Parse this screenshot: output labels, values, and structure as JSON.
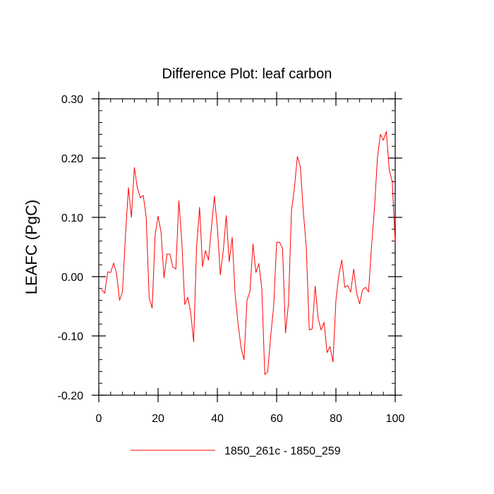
{
  "chart_data": {
    "type": "line",
    "title": "Difference Plot: leaf carbon",
    "xlabel": "",
    "ylabel": "LEAFC  (PgC)",
    "xlim": [
      0,
      100
    ],
    "ylim": [
      -0.2,
      0.3
    ],
    "x_ticks": [
      0,
      20,
      40,
      60,
      80,
      100
    ],
    "y_ticks": [
      -0.2,
      -0.1,
      0.0,
      0.1,
      0.2,
      0.3
    ],
    "x_tick_labels": [
      "0",
      "20",
      "40",
      "60",
      "80",
      "100"
    ],
    "y_tick_labels": [
      "-0.20",
      "-0.10",
      "0.00",
      "0.10",
      "0.20",
      "0.30"
    ],
    "grid": false,
    "legend_position": "bottom-center",
    "series": [
      {
        "name": "1850_261c - 1850_259",
        "color": "#ff0000",
        "x": [
          1,
          2,
          3,
          4,
          5,
          6,
          7,
          8,
          9,
          10,
          11,
          12,
          13,
          14,
          15,
          16,
          17,
          18,
          19,
          20,
          21,
          22,
          23,
          24,
          25,
          26,
          27,
          28,
          29,
          30,
          31,
          32,
          33,
          34,
          35,
          36,
          37,
          38,
          39,
          40,
          41,
          42,
          43,
          44,
          45,
          46,
          47,
          48,
          49,
          50,
          51,
          52,
          53,
          54,
          55,
          56,
          57,
          58,
          59,
          60,
          61,
          62,
          63,
          64,
          65,
          66,
          67,
          68,
          69,
          70,
          71,
          72,
          73,
          74,
          75,
          76,
          77,
          78,
          79,
          80,
          81,
          82,
          83,
          84,
          85,
          86,
          87,
          88,
          89,
          90,
          91,
          92,
          93,
          94,
          95,
          96,
          97,
          98,
          99,
          100
        ],
        "values": [
          -0.022,
          -0.028,
          0.008,
          0.007,
          0.023,
          0.005,
          -0.04,
          -0.025,
          0.07,
          0.15,
          0.1,
          0.184,
          0.15,
          0.133,
          0.137,
          0.1,
          -0.036,
          -0.053,
          0.07,
          0.102,
          0.075,
          -0.002,
          0.038,
          0.038,
          0.016,
          0.013,
          0.128,
          0.06,
          -0.047,
          -0.035,
          -0.06,
          -0.11,
          0.05,
          0.117,
          0.017,
          0.044,
          0.028,
          0.083,
          0.136,
          0.083,
          0.003,
          0.044,
          0.103,
          0.025,
          0.066,
          -0.03,
          -0.08,
          -0.12,
          -0.14,
          -0.04,
          -0.025,
          0.055,
          0.007,
          0.022,
          -0.02,
          -0.165,
          -0.16,
          -0.1,
          -0.05,
          0.058,
          0.058,
          0.048,
          -0.095,
          -0.045,
          0.11,
          0.15,
          0.203,
          0.185,
          0.11,
          0.05,
          -0.09,
          -0.088,
          -0.016,
          -0.07,
          -0.09,
          -0.077,
          -0.128,
          -0.118,
          -0.144,
          -0.04,
          0.003,
          0.028,
          -0.018,
          -0.015,
          -0.026,
          0.013,
          -0.028,
          -0.046,
          -0.022,
          -0.018,
          -0.026,
          0.05,
          0.115,
          0.2,
          0.24,
          0.23,
          0.245,
          0.18,
          0.16,
          0.058
        ]
      }
    ]
  }
}
